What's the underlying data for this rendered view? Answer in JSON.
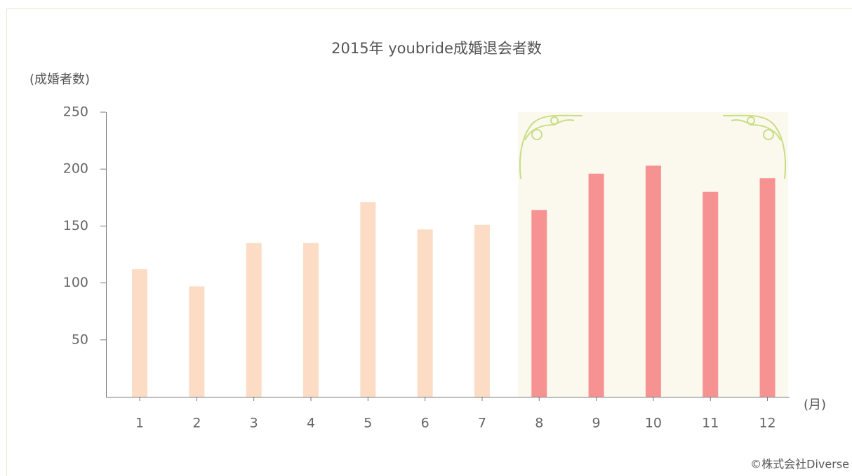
{
  "chart_data": {
    "type": "bar",
    "title": "2015年 youbride成婚退会者数",
    "y_label": "(成婚者数)",
    "x_label": "(月)",
    "credit": "©株式会社Diverse",
    "categories": [
      "1",
      "2",
      "3",
      "4",
      "5",
      "6",
      "7",
      "8",
      "9",
      "10",
      "11",
      "12"
    ],
    "values": [
      112,
      97,
      135,
      135,
      171,
      147,
      151,
      164,
      196,
      203,
      180,
      192
    ],
    "colors": [
      "#fddcc6",
      "#fddcc6",
      "#fddcc6",
      "#fddcc6",
      "#fddcc6",
      "#fddcc6",
      "#fddcc6",
      "#f79292",
      "#f79292",
      "#f79292",
      "#f79292",
      "#f79292"
    ],
    "ylim": [
      0,
      250
    ],
    "yticks": [
      50,
      100,
      150,
      200,
      250
    ]
  }
}
